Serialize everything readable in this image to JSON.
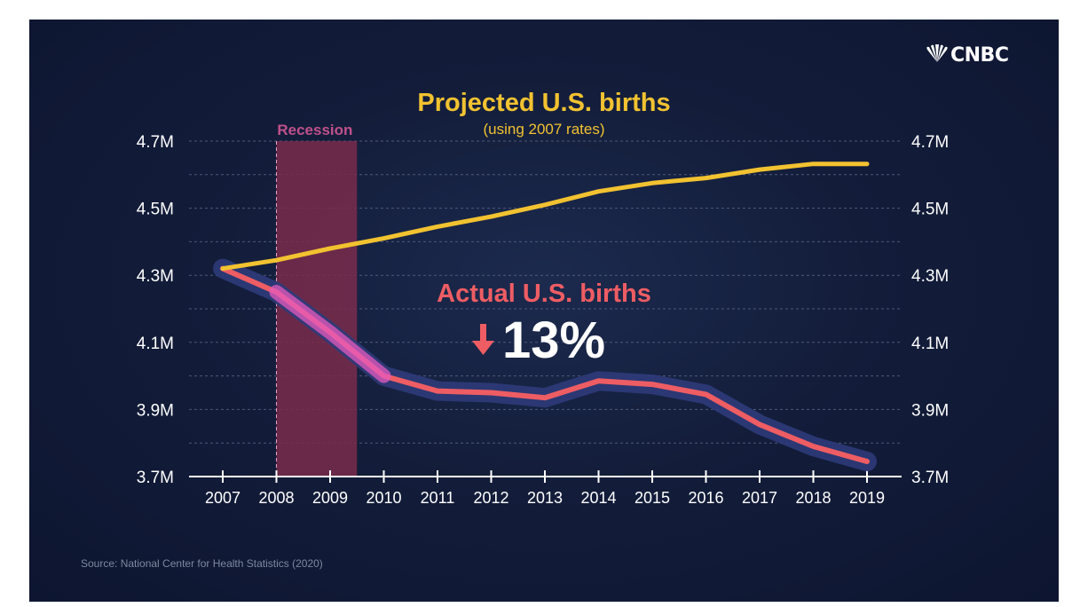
{
  "brand": {
    "logo_text": "CNBC"
  },
  "source_text": "Source: National Center for Health Statistics (2020)",
  "colors": {
    "background": "#131d3a",
    "projected": "#f2c230",
    "actual": "#ee5d63",
    "actual_glow": "#2d3b7a",
    "recession": "#7a2c4c",
    "recession_label": "#c0508a",
    "axis_text": "#ffffff",
    "grid": "#5e6787"
  },
  "chart_data": {
    "type": "line",
    "title": "Projected U.S. births",
    "subtitle": "(using 2007 rates)",
    "x": [
      "2007",
      "2008",
      "2009",
      "2010",
      "2011",
      "2012",
      "2013",
      "2014",
      "2015",
      "2016",
      "2017",
      "2018",
      "2019"
    ],
    "ylim": [
      3.7,
      4.7
    ],
    "y_ticks": [
      "3.7M",
      "3.9M",
      "4.1M",
      "4.3M",
      "4.5M",
      "4.7M"
    ],
    "y_axis_both_sides": true,
    "grid": true,
    "series": [
      {
        "name": "Projected U.S. births",
        "color": "#f2c230",
        "values": [
          4.32,
          4.345,
          4.38,
          4.41,
          4.445,
          4.475,
          4.51,
          4.55,
          4.575,
          4.59,
          4.615,
          4.632,
          4.632
        ]
      },
      {
        "name": "Actual U.S. births",
        "color": "#ee5d63",
        "values": [
          4.32,
          4.25,
          4.13,
          4.0,
          3.955,
          3.95,
          3.935,
          3.985,
          3.975,
          3.945,
          3.855,
          3.79,
          3.745
        ]
      }
    ],
    "annotations": [
      {
        "id": "recession",
        "text": "Recession",
        "x_start": 2008,
        "x_end": 2009.5
      },
      {
        "id": "actual_label",
        "text": "Actual U.S. births"
      },
      {
        "id": "change",
        "text": "13%",
        "direction": "down"
      }
    ]
  }
}
